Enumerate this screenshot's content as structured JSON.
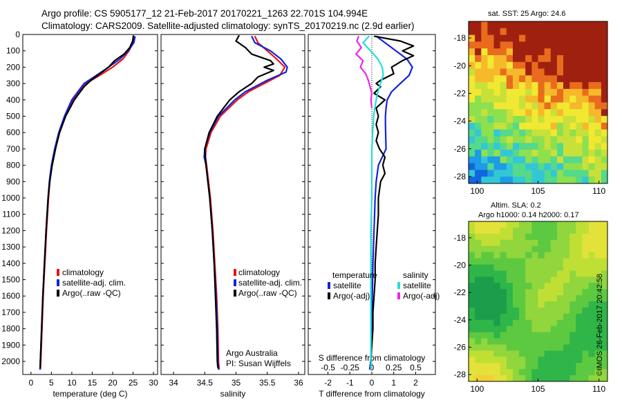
{
  "header": {
    "line1": "Argo profile: CS 5905177_12 21-Feb-2017 20170221_1263 22.701S 104.994E",
    "line2": "Climatology: CARS2009. Satellite-adjusted climatology: synTS_20170219.nc (2.9d earlier)"
  },
  "colors": {
    "clim": "#ee1111",
    "sat": "#1122dd",
    "argo": "#000000",
    "sal_sat": "#22dddd",
    "sal_argo": "#ee22ee"
  },
  "chart_data": [
    {
      "type": "line",
      "id": "temperature",
      "xlabel": "temperature (deg C)",
      "xlim": [
        -2,
        31
      ],
      "ylim": [
        0,
        2080
      ],
      "xticks": [
        0,
        5,
        10,
        15,
        20,
        25,
        30
      ],
      "yticks": [
        0,
        100,
        200,
        300,
        400,
        500,
        600,
        700,
        800,
        900,
        1000,
        1100,
        1200,
        1300,
        1400,
        1500,
        1600,
        1700,
        1800,
        1900,
        2000
      ],
      "legend": [
        "climatology",
        "satellite-adj. clim.",
        "Argo(..raw -QC)"
      ],
      "series": [
        {
          "name": "climatology",
          "color": "#ee1111",
          "depth": [
            10,
            50,
            100,
            150,
            200,
            250,
            300,
            400,
            500,
            600,
            700,
            800,
            900,
            1000,
            1200,
            1400,
            1600,
            1800,
            2000,
            2050
          ],
          "values": [
            25.3,
            25.0,
            24.0,
            22.5,
            20.0,
            16.8,
            13.5,
            10.3,
            8.4,
            7.0,
            5.9,
            5.1,
            4.6,
            4.3,
            3.8,
            3.4,
            3.0,
            2.7,
            2.4,
            2.3
          ]
        },
        {
          "name": "satellite-adj. clim.",
          "color": "#1122dd",
          "depth": [
            10,
            50,
            100,
            150,
            200,
            250,
            300,
            400,
            500,
            600,
            700,
            800,
            900,
            1000,
            1200,
            1400,
            1600,
            1800,
            2000,
            2050
          ],
          "values": [
            25.5,
            25.2,
            23.8,
            21.8,
            19.0,
            16.0,
            13.0,
            10.0,
            8.2,
            6.8,
            5.8,
            5.0,
            4.5,
            4.2,
            3.7,
            3.3,
            2.9,
            2.6,
            2.3,
            2.2
          ]
        },
        {
          "name": "Argo(..raw -QC)",
          "color": "#000000",
          "depth": [
            5,
            40,
            80,
            120,
            160,
            200,
            240,
            280,
            320,
            400,
            500,
            600,
            700,
            800,
            900,
            1000,
            1200,
            1400,
            1600,
            1800,
            2000,
            2040
          ],
          "values": [
            25.1,
            24.9,
            24.2,
            22.8,
            20.5,
            19.0,
            16.9,
            14.7,
            13.0,
            10.6,
            8.5,
            7.0,
            6.0,
            5.2,
            4.6,
            4.2,
            3.7,
            3.3,
            2.9,
            2.6,
            2.3,
            2.3
          ]
        }
      ]
    },
    {
      "type": "line",
      "id": "salinity",
      "xlabel": "salinity",
      "xlim": [
        33.8,
        36.1
      ],
      "ylim": [
        0,
        2080
      ],
      "xticks": [
        34,
        34.5,
        35,
        35.5,
        36
      ],
      "legend": [
        "climatology",
        "satellite-adj. clim.",
        "Argo(..raw -QC)"
      ],
      "annotation": [
        "Argo Australia",
        "PI: Susan Wijffels"
      ],
      "series": [
        {
          "name": "climatology",
          "color": "#ee1111",
          "depth": [
            10,
            50,
            100,
            150,
            200,
            250,
            300,
            350,
            400,
            500,
            600,
            700,
            750,
            800,
            900,
            1000,
            1200,
            1400,
            1600,
            1800,
            2000,
            2050
          ],
          "values": [
            35.3,
            35.35,
            35.5,
            35.65,
            35.78,
            35.7,
            35.45,
            35.2,
            35.02,
            34.75,
            34.6,
            34.52,
            34.51,
            34.53,
            34.56,
            34.59,
            34.63,
            34.66,
            34.69,
            34.71,
            34.72,
            34.73
          ]
        },
        {
          "name": "satellite-adj. clim.",
          "color": "#1122dd",
          "depth": [
            10,
            50,
            100,
            150,
            200,
            230,
            280,
            350,
            400,
            500,
            600,
            700,
            750,
            800,
            900,
            1000,
            1200,
            1400,
            1600,
            1800,
            2000,
            2050
          ],
          "values": [
            35.25,
            35.3,
            35.55,
            35.72,
            35.82,
            35.8,
            35.5,
            35.15,
            34.98,
            34.72,
            34.58,
            34.5,
            34.49,
            34.52,
            34.55,
            34.58,
            34.62,
            34.65,
            34.68,
            34.7,
            34.71,
            34.72
          ]
        },
        {
          "name": "Argo(..raw -QC)",
          "color": "#000000",
          "depth": [
            5,
            40,
            80,
            120,
            160,
            180,
            200,
            220,
            260,
            300,
            350,
            400,
            500,
            600,
            700,
            800,
            900,
            1000,
            1200,
            1400,
            1600,
            1800,
            2000,
            2040
          ],
          "values": [
            35.05,
            35.0,
            35.15,
            35.25,
            35.55,
            35.6,
            35.45,
            35.6,
            35.35,
            35.25,
            35.05,
            34.9,
            34.7,
            34.57,
            34.5,
            34.52,
            34.55,
            34.58,
            34.62,
            34.65,
            34.67,
            34.69,
            34.7,
            34.71
          ]
        }
      ]
    },
    {
      "type": "line",
      "id": "differences",
      "xlabel": "T difference from climatology",
      "xlim": [
        -2.9,
        2.9
      ],
      "ylim": [
        0,
        2080
      ],
      "xticks": [
        -2,
        -1,
        0,
        1,
        2
      ],
      "x2label": "S difference from climatology",
      "x2lim": [
        -0.725,
        0.725
      ],
      "x2ticks": [
        -0.5,
        -0.25,
        0,
        0.25,
        0.5
      ],
      "x2ticklabels": [
        "-0.5",
        "-0.25",
        "0",
        "0.25",
        "0.5"
      ],
      "legend_titles": [
        "temperature",
        "salinity"
      ],
      "legend": [
        "satellite",
        "Argo(-adj)",
        "satellite",
        "Argo(-adj)"
      ],
      "series": [
        {
          "name": "temperature satellite",
          "color": "#1122dd",
          "depth": [
            10,
            50,
            100,
            150,
            200,
            250,
            300,
            350,
            400,
            450,
            500,
            550,
            600,
            700,
            800,
            900,
            1000,
            1200,
            1400,
            1600,
            1800,
            2000,
            2050
          ],
          "values": [
            0.2,
            0.6,
            1.1,
            1.6,
            1.85,
            1.7,
            1.3,
            0.9,
            0.7,
            0.65,
            0.62,
            0.62,
            0.63,
            0.65,
            0.3,
            0.2,
            0.15,
            0.1,
            0.05,
            0.02,
            0.0,
            -0.05,
            -0.1
          ]
        },
        {
          "name": "temperature Argo(-adj)",
          "color": "#000000",
          "depth": [
            10,
            40,
            70,
            100,
            130,
            160,
            200,
            240,
            280,
            300,
            320,
            360,
            400,
            450,
            500,
            550,
            600,
            650,
            700,
            750,
            800,
            850,
            900,
            950,
            1000,
            1100,
            1200,
            1300,
            1400,
            1500,
            1600,
            1700,
            1800,
            1900,
            2000,
            2030
          ],
          "values": [
            0.1,
            1.3,
            1.9,
            1.4,
            1.9,
            1.4,
            0.9,
            1.0,
            0.4,
            0.2,
            0.4,
            0.1,
            0.6,
            0.2,
            0.3,
            0.2,
            0.3,
            0.2,
            0.35,
            0.6,
            0.5,
            0.6,
            0.4,
            0.35,
            0.3,
            0.3,
            0.25,
            0.2,
            0.15,
            0.15,
            0.1,
            0.05,
            0.05,
            0.0,
            -0.05,
            -0.05
          ]
        },
        {
          "name": "salinity satellite",
          "color": "#22dddd",
          "depth": [
            10,
            50,
            80,
            120,
            150,
            200,
            250,
            300,
            350,
            400,
            500,
            600,
            700,
            800,
            900,
            1000,
            1200,
            1400,
            1600,
            1800,
            2000,
            2050
          ],
          "values": [
            -0.03,
            -0.1,
            -0.05,
            0.02,
            0.07,
            0.12,
            0.13,
            0.1,
            0.07,
            0.05,
            0.02,
            0.01,
            0.0,
            0.0,
            0.0,
            0.0,
            -0.01,
            -0.01,
            -0.01,
            -0.01,
            -0.01,
            -0.01
          ]
        },
        {
          "name": "salinity Argo(-adj)",
          "color": "#ee22ee",
          "depth": [
            10,
            40,
            80,
            120,
            160,
            200,
            240,
            280,
            320,
            360,
            400,
            450
          ],
          "values": [
            -0.15,
            -0.17,
            -0.12,
            -0.18,
            -0.1,
            -0.13,
            -0.07,
            -0.04,
            -0.02,
            0.0,
            -0.01,
            0.0
          ]
        }
      ]
    },
    {
      "type": "heatmap",
      "id": "sst-map",
      "title": "sat. SST: 25 Argo: 24.6",
      "xticks": [
        100,
        105,
        110
      ],
      "yticks": [
        -18,
        -20,
        -22,
        -24,
        -26,
        -28
      ]
    },
    {
      "type": "heatmap",
      "id": "sla-map",
      "title_lines": [
        "Altim. SLA: 0.2",
        "Argo h1000: 0.14 h2000: 0.17"
      ],
      "xticks": [
        100,
        105,
        110
      ],
      "yticks": [
        -18,
        -20,
        -22,
        -24,
        -26,
        -28
      ]
    }
  ],
  "footer": {
    "stamp": "©IMOS 26-Feb-2017 20:42:58"
  }
}
